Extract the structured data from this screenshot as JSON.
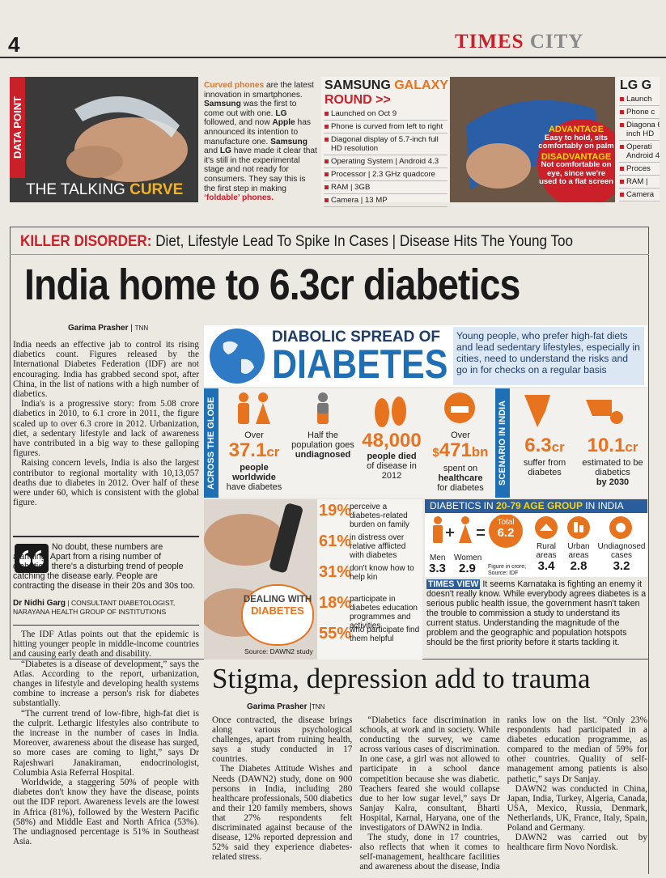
{
  "header": {
    "page_number": "4",
    "brand": "TIMES",
    "section": "CITY"
  },
  "data_point": {
    "label": "DATA POINT",
    "caption": "THE TALKING",
    "caption_highlight": "CURVE",
    "blurb": [
      "Curved phones",
      " are the latest innovation in smartphones. ",
      "Samsung",
      " was the first to come out with one. ",
      "LG",
      " followed, and now ",
      "Apple",
      " has announced its intention to manufacture one. ",
      "Samsung",
      " and ",
      "LG",
      " have made it clear that it's still in the experimental stage and not ready for consumers. They say this is the first step in making ",
      "‘foldable’ phones."
    ]
  },
  "samsung": {
    "brand": "SAMSUNG",
    "model": "GALAXY",
    "model_2": "ROUND >>",
    "specs": [
      "Launched on Oct 9",
      "Phone is curved from left to right",
      "Diagonal display of 5.7-inch full HD resolution",
      "Operating System | Android 4.3",
      "Processor | 2.3 GHz quadcore",
      "RAM | 3GB",
      "Camera | 13 MP"
    ],
    "advantage_title": "ADVANTAGE",
    "advantage": "Easy to hold, sits comfortably on palm",
    "disadvantage_title": "DISADVANTAGE",
    "disadvantage": "Not comfortable on eye, since we're used to a flat screen"
  },
  "lg": {
    "title": "LG G",
    "specs": [
      "Launch",
      "Phone c",
      "Diagona 6-inch HD",
      "Operati Android 4",
      "Proces",
      "RAM |",
      "Camera"
    ]
  },
  "main_article": {
    "kicker": "KILLER DISORDER:",
    "subhead": "Diet, Lifestyle Lead To Spike In Cases | Disease Hits The Young Too",
    "headline": "India home to 6.3cr diabetics",
    "byline": "Garima Prasher",
    "agency": "TNN",
    "body": [
      "India needs an effective jab to control its rising diabetics count. Figures released by the International Diabetes Federation (IDF) are not encouraging. India has grabbed second spot, after China, in the list of nations with a high number of diabetics.",
      "India's is a progressive story: from 5.08 crore diabetics in 2010, to 6.1 crore in 2011, the figure scaled up to over 6.3 crore in 2012. Urbanization, diet, a sedentary lifestyle and lack of awareness have contributed in a big way to these galloping figures.",
      "Raising concern levels, India is also the largest contributor to regional mortality with 10,13,057 deaths due to diabetes in 2012. Over half of these were under 60, which is consistent with the global figure."
    ],
    "quote": {
      "text": "No doubt, these numbers are alarming. Apart from a rising number of diabetics, there's a disturbing trend of people catching the disease early. People are contracting the disease in their 20s and 30s too.",
      "name": "Dr Nidhi Garg",
      "role": "CONSULTANT DIABETOLOGIST, NARAYANA HEALTH GROUP OF INSTITUTIONS"
    },
    "body_2": [
      "The IDF Atlas points out that the epidemic is hitting younger people in middle-income countries and causing early death and disability.",
      "“Diabetes is a disease of development,” says the Atlas. According to the report, urbanization, changes in lifestyle and developing health systems combine to increase a person's risk for diabetes substantially.",
      "“The current trend of low-fibre, high-fat diet is the culprit. Lethargic lifestyles also contribute to the increase in the number of cases in India. Moreover, awareness about the disease has surged, so more cases are coming to light,” says Dr Rajeshwari Janakiraman, endocrinologist, Columbia Asia Referral Hospital.",
      "Worldwide, a staggering 50% of people with diabetes don't know they have the disease, points out the IDF report. Awareness levels are the lowest in Africa (81%), followed by the Western Pacific (58%) and Middle East and North Africa (53%). The undiagnosed percentage is 51% in Southeast Asia."
    ]
  },
  "infographic": {
    "title": "DIABOLIC SPREAD OF",
    "title_big": "DIABETES",
    "intro": "Young people, who prefer high-fat diets and lead sedentary lifestyles, especially in cities, need to understand the risks and go in for checks on a regular basis",
    "globe_label": "ACROSS THE GLOBE",
    "india_label": "SCENARIO IN INDIA",
    "globe_stats": [
      {
        "lead": "Over",
        "figure": "37.1",
        "unit": "cr",
        "strong": "people worldwide",
        "text": "have diabetes"
      },
      {
        "text": "Half the population goes",
        "strong": "undiagnosed"
      },
      {
        "figure": "48,000",
        "strong": "people died",
        "text": "of disease in 2012"
      },
      {
        "lead": "Over",
        "currency": "$",
        "figure": "471",
        "unit": "bn",
        "text": "spent on",
        "strong": "healthcare",
        "text_2": "for diabetes"
      }
    ],
    "india_stats": [
      {
        "figure": "6.3",
        "unit": "cr",
        "text": "suffer from diabetes"
      },
      {
        "figure": "10.1",
        "unit": "cr",
        "text": "estimated to be diabetics",
        "strong": "by 2030"
      }
    ],
    "dealing": {
      "title": "DEALING WITH",
      "title_2": "DIABETES",
      "source": "Source: DAWN2 study",
      "stats": [
        {
          "figure": "19%",
          "text": "perceive a diabetes-related burden on family"
        },
        {
          "figure": "61%",
          "text": "in distress over relative afflicted with diabetes"
        },
        {
          "figure": "31%",
          "text": "don't know how to help kin"
        },
        {
          "figure": "18%",
          "text": "participate in diabetes education programmes and activities"
        },
        {
          "figure": "55%",
          "text": "who participate find them helpful"
        }
      ]
    },
    "age_group": {
      "title": "DIABETICS IN",
      "highlight": "20-79 AGE GROUP",
      "title_end": "IN INDIA",
      "men_label": "Men",
      "men": "3.3",
      "women_label": "Women",
      "women": "2.9",
      "total_label": "Total",
      "total": "6.2",
      "note": "Figure in crore; Source: IDF",
      "rural_label": "Rural areas",
      "rural": "3.4",
      "urban_label": "Urban areas",
      "urban": "2.8",
      "undiagnosed_label": "Undiagnosed cases",
      "undiagnosed": "3.2"
    }
  },
  "times_view": {
    "label": "TIMES VIEW",
    "text": "It seems Karnataka is fighting an enemy it doesn't really know. While everybody agrees diabetes is a serious public health issue, the government hasn't taken the trouble to commission a study to understand its current status. Understanding the magnitude of the problem and the geographic and population hotspots should be the first priority before it starts tackling it."
  },
  "second_article": {
    "headline": "Stigma, depression add to trauma",
    "byline": "Garima Prasher",
    "agency": "TNN",
    "body": [
      "Once contracted, the disease brings along various psychological challenges, apart from ruining health, says a study conducted in 17 countries.",
      "The Diabetes Attitude Wishes and Needs (DAWN2) study, done on 900 persons in India, including 280 healthcare professionals, 500 diabetics and their 120 family members, shows that 27% respondents felt discriminated against because of the disease, 12% reported depression and 52% said they experience diabetes-related stress.",
      "“Diabetics face discrimination in schools, at work and in society. While conducting the survey, we came across various cases of discrimination. In one case, a girl was not allowed to participate in a school dance competition because she was diabetic. Teachers feared she would collapse due to her low sugar level,” says Dr Sanjay Kalra, consultant, Bharti Hospital, Karnal, Haryana, one of the investigators of DAWN2 in India.",
      "The study, done in 17 countries, also reflects that when it comes to self-management, healthcare facilities and awareness about the disease, India ranks low on the list. “Only 23% respondents had participated in a diabetes education programme, as compared to the median of 59% for other countries. Quality of self-management among patients is also pathetic,” says Dr Sanjay.",
      "DAWN2 was conducted in China, Japan, India, Turkey, Algeria, Canada, USA, Mexico, Russia, Denmark, Netherlands, UK, France, Italy, Spain, Poland and Germany.",
      "DAWN2 was carried out by healthcare firm Novo Nordisk."
    ]
  }
}
